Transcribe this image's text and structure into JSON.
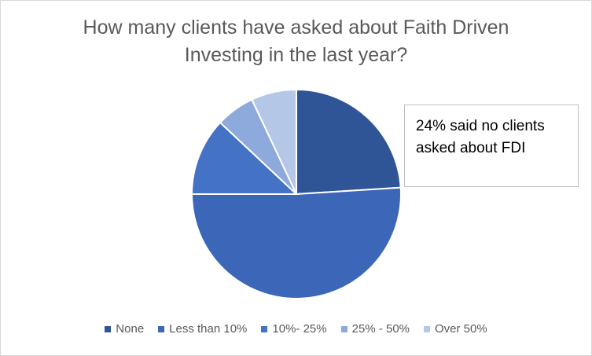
{
  "chart_data": {
    "type": "pie",
    "title_lines": [
      "How many clients have asked about Faith Driven",
      "Investing in the last year?"
    ],
    "slices": [
      {
        "label": "None",
        "value": 24,
        "color": "#2f5597"
      },
      {
        "label": "Less than 10%",
        "value": 51,
        "color": "#3c66b7"
      },
      {
        "label": "10%- 25%",
        "value": 12,
        "color": "#4472c4"
      },
      {
        "label": "25% - 50%",
        "value": 6,
        "color": "#8ea9db"
      },
      {
        "label": "Over 50%",
        "value": 7,
        "color": "#b4c7e7"
      }
    ],
    "annotation_lines": [
      "24% said no clients",
      "asked about FDI"
    ],
    "legend_position": "bottom"
  }
}
